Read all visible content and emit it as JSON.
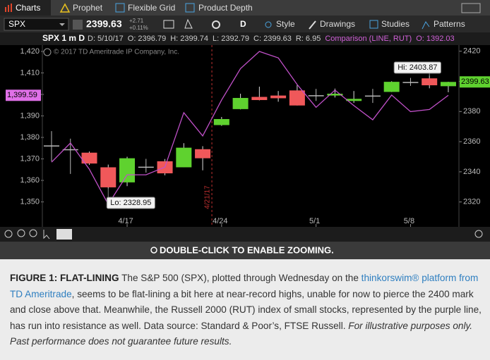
{
  "tabs": [
    "Charts",
    "Prophet",
    "Flexible Grid",
    "Product Depth"
  ],
  "toolbar": {
    "symbol": "SPX",
    "last": "2399.63",
    "change": "+2.71",
    "change_pct": "+0.11%",
    "period": "D",
    "buttons": [
      "Style",
      "Drawings",
      "Studies",
      "Patterns"
    ]
  },
  "info_bar": {
    "label": "SPX 1 m D",
    "fields": [
      "D: 5/10/17",
      "O: 2396.79",
      "H: 2399.74",
      "L: 2392.79",
      "C: 2399.63",
      "R: 6.95"
    ],
    "comparison": "Comparison (LINE, RUT)",
    "comparison_open": "O: 1392.03"
  },
  "chart_data": {
    "type": "candlestick",
    "copyright": "© 2017 TD Ameritrade IP Company, Inc.",
    "event_label": "4/21/17",
    "categories": [
      null,
      null,
      null,
      null,
      "4/17",
      null,
      null,
      null,
      null,
      "4/24",
      null,
      null,
      null,
      null,
      "5/1",
      null,
      null,
      null,
      null,
      "5/8",
      null,
      null
    ],
    "open": [
      2357,
      2355,
      2352.7,
      2343,
      2333,
      2343,
      2347,
      2343,
      2355,
      2371,
      2381.6,
      2389.7,
      2390.6,
      2394,
      2390.6,
      2390.6,
      2387,
      2390.6,
      2393,
      2399.4,
      2402,
      2396.79
    ],
    "high": [
      2367,
      2362,
      2353.5,
      2344.8,
      2350,
      2348.6,
      2348.5,
      2359,
      2357,
      2376.4,
      2391.8,
      2396.5,
      2393.6,
      2397.5,
      2395,
      2395.2,
      2393.6,
      2395,
      2400.1,
      2402.3,
      2403.87,
      2399.74
    ],
    "low": [
      2347,
      2338.6,
      2344.6,
      2328.95,
      2330.5,
      2339.5,
      2337.7,
      2343,
      2341,
      2370.5,
      2381.4,
      2387.4,
      2386.5,
      2384,
      2387,
      2389.3,
      2385.7,
      2385.7,
      2392.9,
      2397,
      2395.4,
      2392.79
    ],
    "close": [
      2357.5,
      2354.5,
      2345.5,
      2329.7,
      2349,
      2343.4,
      2339,
      2356,
      2349,
      2375,
      2389,
      2387.6,
      2388.8,
      2384,
      2390.8,
      2391.8,
      2388.4,
      2390.4,
      2399.7,
      2399.6,
      2397.4,
      2399.63
    ],
    "up_color": "#5fd22f",
    "down_color": "#f0585a",
    "flat_color": "#b8b8b8",
    "hi_label": "Hi: 2403.87",
    "lo_label": "Lo: 2328.95",
    "last_label": "2399.63",
    "comparison": {
      "color": "#c050c8",
      "axis": "y2",
      "last_label": "1,399.59",
      "values": [
        1368.5,
        1377.4,
        1365.2,
        1348.9,
        1362.6,
        1362.6,
        1366.2,
        1391.5,
        1380.7,
        1397.4,
        1412,
        1420,
        1417,
        1404.6,
        1394,
        1402,
        1394.8,
        1388.2,
        1399.7,
        1392,
        1393,
        1399.59
      ]
    },
    "ylim": [
      2303.5,
      2424.06
    ],
    "yticks": [
      2320,
      2340,
      2360,
      2380,
      2400,
      2420
    ],
    "y2lim": [
      1338.4,
      1422.95
    ],
    "y2ticks": [
      {
        "value": 1350,
        "label": "1,350"
      },
      {
        "value": 1360,
        "label": "1,360"
      },
      {
        "value": 1370,
        "label": "1,370"
      },
      {
        "value": 1380,
        "label": "1,380"
      },
      {
        "value": 1390,
        "label": "1,390"
      },
      {
        "value": 1400,
        "label": "1,400"
      },
      {
        "value": 1410,
        "label": "1,410"
      },
      {
        "value": 1420,
        "label": "1,420"
      }
    ]
  },
  "zoom_hint": "DOUBLE-CLICK TO ENABLE ZOOMING.",
  "caption": {
    "title": "FIGURE 1: FLAT-LINING",
    "text1": "The S&P 500 (SPX), plotted through Wednesday on the",
    "link": "thinkorswim® platform from TD Ameritrade",
    "text2": ", seems to be flat-lining a bit here at near-record highs, unable for now to pierce the 2400 mark and close above that. Meanwhile, the Russell 2000 (RUT) index of small stocks, represented by the purple line, has run into resistance as well. Data source: Standard & Poor’s, FTSE Russell.",
    "note": "For illustrative purposes only. Past performance does not guarantee future results."
  }
}
